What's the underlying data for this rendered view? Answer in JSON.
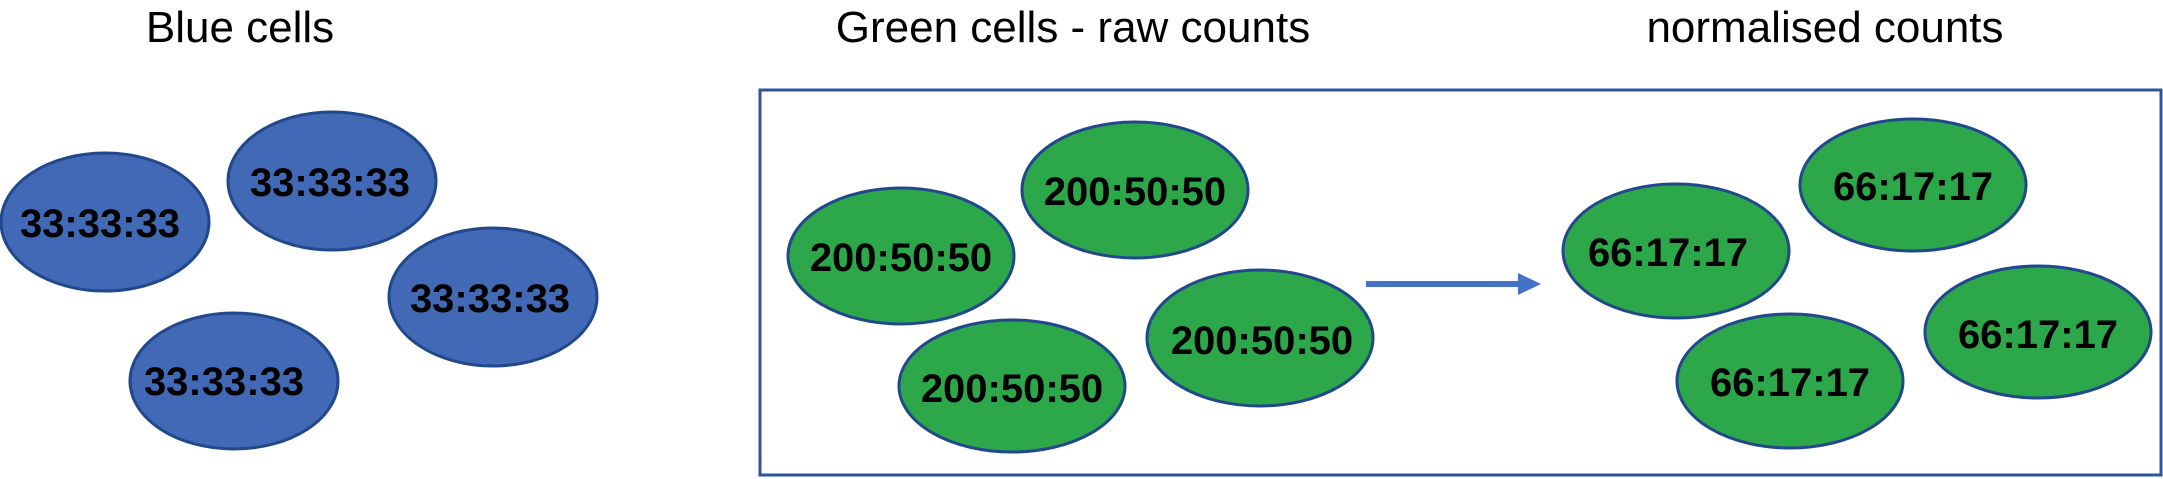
{
  "headings": {
    "blue": "Blue cells",
    "green_raw": "Green cells - raw counts",
    "normalised": "normalised counts"
  },
  "colors": {
    "blue_fill": "#4169b5",
    "green_fill": "#2ca84a",
    "outline": "#21488c",
    "arrow": "#4472c4",
    "box_stroke": "#2f5597"
  },
  "blue_cells": [
    "33:33:33",
    "33:33:33",
    "33:33:33",
    "33:33:33"
  ],
  "green_raw_cells": [
    "200:50:50",
    "200:50:50",
    "200:50:50",
    "200:50:50"
  ],
  "green_normalised_cells": [
    "66:17:17",
    "66:17:17",
    "66:17:17",
    "66:17:17"
  ]
}
